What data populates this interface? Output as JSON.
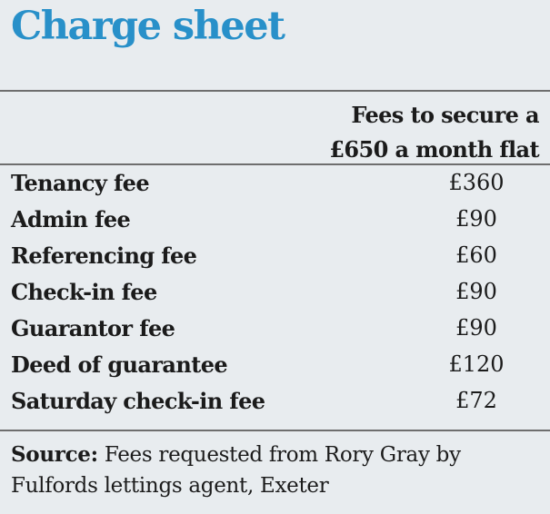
{
  "title": "Charge sheet",
  "column_header": {
    "line1": "Fees to secure a",
    "line2": "£650 a month flat"
  },
  "rows": [
    {
      "label": "Tenancy fee",
      "value": "£360"
    },
    {
      "label": "Admin fee",
      "value": "£90"
    },
    {
      "label": "Referencing fee",
      "value": "£60"
    },
    {
      "label": "Check-in fee",
      "value": "£90"
    },
    {
      "label": "Guarantor fee",
      "value": "£90"
    },
    {
      "label": "Deed of guarantee",
      "value": "£120"
    },
    {
      "label": "Saturday check-in fee",
      "value": "£72"
    }
  ],
  "source": {
    "label": "Source:",
    "text": "Fees requested from Rory Gray by Fulfords lettings agent, Exeter"
  },
  "colors": {
    "title": "#2890c9",
    "background": "#e8ecef",
    "rule": "#6e6e6e"
  }
}
